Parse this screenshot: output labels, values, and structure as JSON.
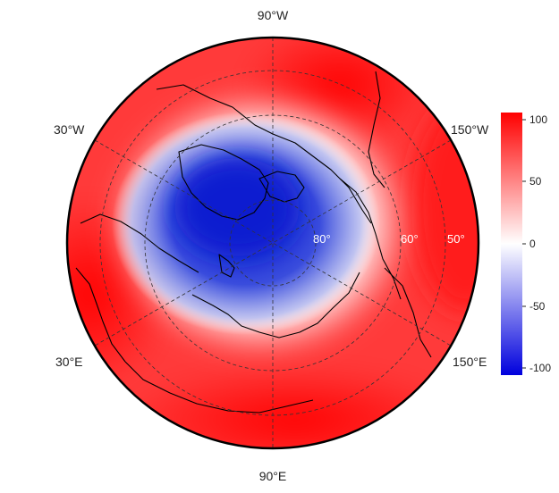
{
  "map": {
    "projection": "north-polar-stereographic",
    "field_colors": {
      "low": "#0a1fd0",
      "mid": "#ffffff",
      "high": "#ff0000"
    },
    "longitude_labels": [
      "90°W",
      "150°W",
      "150°E",
      "90°E",
      "30°E",
      "30°W"
    ],
    "latitude_labels": [
      "80°",
      "60°",
      "50°"
    ],
    "latitude_circles": [
      80,
      60,
      50
    ],
    "colorbar": {
      "min": -100,
      "max": 100,
      "ticks": [
        "100",
        "50",
        "0",
        "-50",
        "-100"
      ]
    }
  }
}
